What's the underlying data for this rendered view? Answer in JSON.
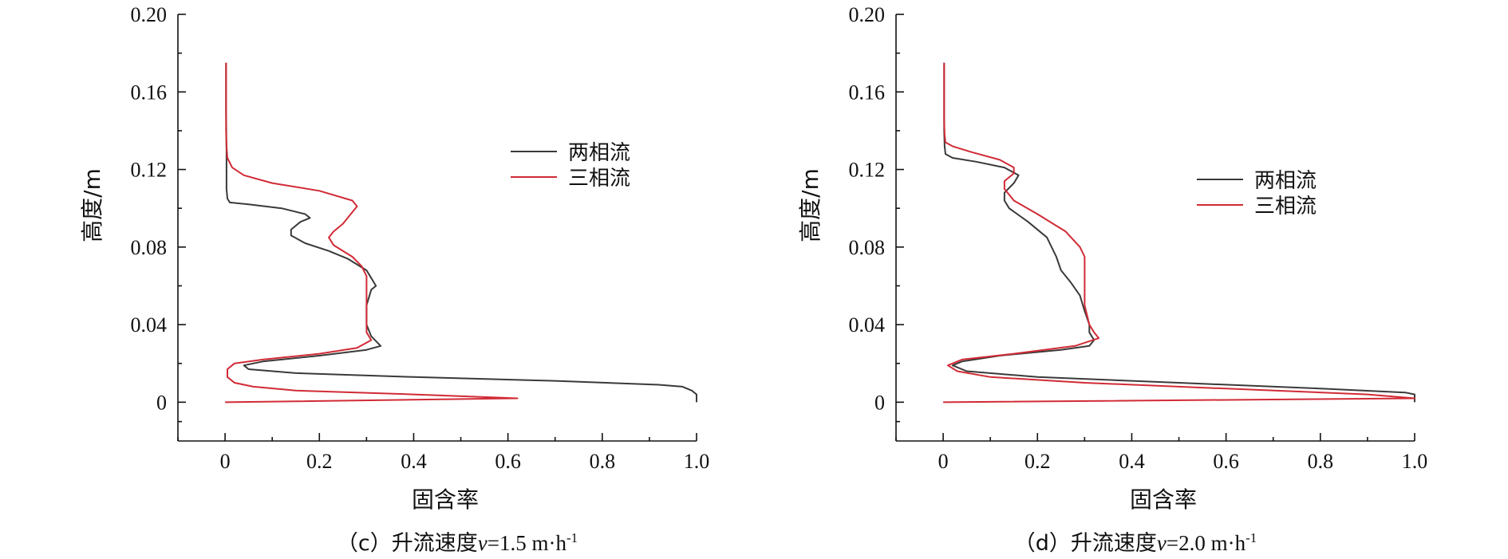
{
  "chart_data": [
    {
      "type": "line",
      "caption": {
        "prefix": "（c）升流速度",
        "var": "v",
        "value": "=1.5 m·h",
        "sup": "-1"
      },
      "xlabel": "固含率",
      "ylabel": "高度/m",
      "xlim": [
        -0.1,
        1.0
      ],
      "ylim": [
        -0.02,
        0.2
      ],
      "xticks": [
        0,
        0.2,
        0.4,
        0.6,
        0.8,
        1.0
      ],
      "xtick_labels": [
        "0",
        "0.2",
        "0.4",
        "0.6",
        "0.8",
        "1.0"
      ],
      "yticks": [
        0,
        0.04,
        0.08,
        0.12,
        0.16,
        0.2
      ],
      "ytick_labels": [
        "0",
        "0.04",
        "0.08",
        "0.12",
        "0.16",
        "0.20"
      ],
      "legend_position": "right",
      "series": [
        {
          "name": "两相流",
          "color": "#3a3a3a",
          "points": [
            [
              1.0,
              0.0
            ],
            [
              1.0,
              0.004
            ],
            [
              0.99,
              0.006
            ],
            [
              0.97,
              0.008
            ],
            [
              0.92,
              0.009
            ],
            [
              0.7,
              0.011
            ],
            [
              0.4,
              0.013
            ],
            [
              0.15,
              0.015
            ],
            [
              0.05,
              0.017
            ],
            [
              0.04,
              0.019
            ],
            [
              0.08,
              0.021
            ],
            [
              0.2,
              0.024
            ],
            [
              0.3,
              0.027
            ],
            [
              0.33,
              0.029
            ],
            [
              0.31,
              0.034
            ],
            [
              0.3,
              0.04
            ],
            [
              0.3,
              0.05
            ],
            [
              0.31,
              0.058
            ],
            [
              0.32,
              0.06
            ],
            [
              0.31,
              0.064
            ],
            [
              0.3,
              0.068
            ],
            [
              0.26,
              0.074
            ],
            [
              0.22,
              0.078
            ],
            [
              0.17,
              0.082
            ],
            [
              0.14,
              0.086
            ],
            [
              0.14,
              0.089
            ],
            [
              0.16,
              0.093
            ],
            [
              0.18,
              0.095
            ],
            [
              0.17,
              0.097
            ],
            [
              0.12,
              0.1
            ],
            [
              0.05,
              0.102
            ],
            [
              0.01,
              0.103
            ],
            [
              0.005,
              0.105
            ],
            [
              0.003,
              0.11
            ],
            [
              0.003,
              0.13
            ],
            [
              0.002,
              0.15
            ],
            [
              0.002,
              0.175
            ]
          ]
        },
        {
          "name": "三相流",
          "color": "#d12b36",
          "points": [
            [
              0.0,
              0.0
            ],
            [
              0.62,
              0.002
            ],
            [
              0.4,
              0.004
            ],
            [
              0.15,
              0.006
            ],
            [
              0.06,
              0.008
            ],
            [
              0.02,
              0.01
            ],
            [
              0.005,
              0.013
            ],
            [
              0.005,
              0.017
            ],
            [
              0.02,
              0.02
            ],
            [
              0.08,
              0.022
            ],
            [
              0.2,
              0.025
            ],
            [
              0.28,
              0.028
            ],
            [
              0.31,
              0.032
            ],
            [
              0.3,
              0.036
            ],
            [
              0.3,
              0.04
            ],
            [
              0.3,
              0.055
            ],
            [
              0.3,
              0.065
            ],
            [
              0.29,
              0.07
            ],
            [
              0.27,
              0.075
            ],
            [
              0.23,
              0.081
            ],
            [
              0.22,
              0.085
            ],
            [
              0.23,
              0.088
            ],
            [
              0.25,
              0.092
            ],
            [
              0.27,
              0.098
            ],
            [
              0.28,
              0.101
            ],
            [
              0.27,
              0.104
            ],
            [
              0.2,
              0.109
            ],
            [
              0.1,
              0.113
            ],
            [
              0.04,
              0.117
            ],
            [
              0.015,
              0.121
            ],
            [
              0.005,
              0.126
            ],
            [
              0.003,
              0.132
            ],
            [
              0.002,
              0.14
            ],
            [
              0.002,
              0.16
            ],
            [
              0.002,
              0.175
            ]
          ]
        }
      ]
    },
    {
      "type": "line",
      "caption": {
        "prefix": "（d）升流速度",
        "var": "v",
        "value": "=2.0 m·h",
        "sup": "-1"
      },
      "xlabel": "固含率",
      "ylabel": "高度/m",
      "xlim": [
        -0.1,
        1.0
      ],
      "ylim": [
        -0.02,
        0.2
      ],
      "xticks": [
        0,
        0.2,
        0.4,
        0.6,
        0.8,
        1.0
      ],
      "xtick_labels": [
        "0",
        "0.2",
        "0.4",
        "0.6",
        "0.8",
        "1.0"
      ],
      "yticks": [
        0,
        0.04,
        0.08,
        0.12,
        0.16,
        0.2
      ],
      "ytick_labels": [
        "0",
        "0.04",
        "0.08",
        "0.12",
        "0.16",
        "0.20"
      ],
      "legend_position": "right",
      "series": [
        {
          "name": "两相流",
          "color": "#3a3a3a",
          "points": [
            [
              1.0,
              0.0
            ],
            [
              1.0,
              0.004
            ],
            [
              0.98,
              0.005
            ],
            [
              0.8,
              0.007
            ],
            [
              0.5,
              0.01
            ],
            [
              0.2,
              0.013
            ],
            [
              0.05,
              0.016
            ],
            [
              0.02,
              0.019
            ],
            [
              0.04,
              0.021
            ],
            [
              0.12,
              0.024
            ],
            [
              0.25,
              0.027
            ],
            [
              0.31,
              0.029
            ],
            [
              0.32,
              0.032
            ],
            [
              0.31,
              0.036
            ],
            [
              0.31,
              0.04
            ],
            [
              0.3,
              0.047
            ],
            [
              0.29,
              0.055
            ],
            [
              0.27,
              0.062
            ],
            [
              0.25,
              0.068
            ],
            [
              0.24,
              0.075
            ],
            [
              0.22,
              0.085
            ],
            [
              0.18,
              0.093
            ],
            [
              0.14,
              0.1
            ],
            [
              0.13,
              0.104
            ],
            [
              0.13,
              0.108
            ],
            [
              0.15,
              0.113
            ],
            [
              0.16,
              0.117
            ],
            [
              0.13,
              0.121
            ],
            [
              0.07,
              0.124
            ],
            [
              0.02,
              0.126
            ],
            [
              0.005,
              0.128
            ],
            [
              0.003,
              0.132
            ],
            [
              0.002,
              0.14
            ],
            [
              0.002,
              0.16
            ],
            [
              0.002,
              0.175
            ]
          ]
        },
        {
          "name": "三相流",
          "color": "#d12b36",
          "points": [
            [
              0.0,
              0.0
            ],
            [
              1.0,
              0.002
            ],
            [
              0.9,
              0.004
            ],
            [
              0.6,
              0.007
            ],
            [
              0.3,
              0.01
            ],
            [
              0.1,
              0.013
            ],
            [
              0.03,
              0.016
            ],
            [
              0.01,
              0.019
            ],
            [
              0.04,
              0.022
            ],
            [
              0.15,
              0.025
            ],
            [
              0.28,
              0.029
            ],
            [
              0.33,
              0.033
            ],
            [
              0.32,
              0.036
            ],
            [
              0.31,
              0.04
            ],
            [
              0.3,
              0.05
            ],
            [
              0.3,
              0.065
            ],
            [
              0.3,
              0.075
            ],
            [
              0.29,
              0.08
            ],
            [
              0.26,
              0.088
            ],
            [
              0.2,
              0.097
            ],
            [
              0.15,
              0.104
            ],
            [
              0.13,
              0.11
            ],
            [
              0.13,
              0.114
            ],
            [
              0.15,
              0.118
            ],
            [
              0.15,
              0.121
            ],
            [
              0.12,
              0.125
            ],
            [
              0.06,
              0.129
            ],
            [
              0.02,
              0.132
            ],
            [
              0.005,
              0.134
            ],
            [
              0.003,
              0.138
            ],
            [
              0.002,
              0.145
            ],
            [
              0.002,
              0.16
            ],
            [
              0.002,
              0.175
            ]
          ]
        }
      ]
    }
  ]
}
